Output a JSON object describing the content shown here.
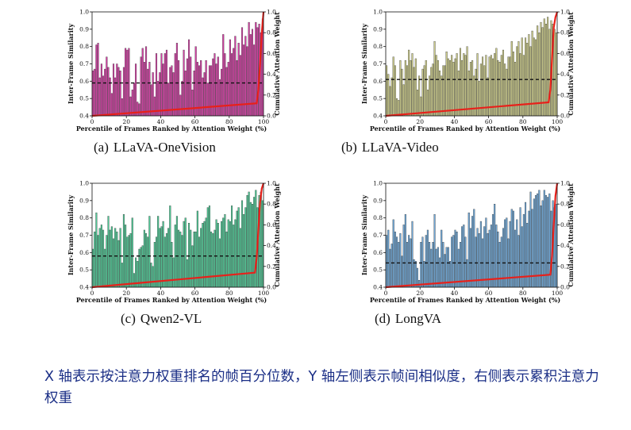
{
  "chart_data": [
    {
      "type": "bar",
      "caption_label": "(a)",
      "caption": "LLaVA-OneVision",
      "xlabel": "Percentile of Frames Ranked by Attention Weight (%)",
      "ylabel": "Inter-Frame Similarity",
      "y2label": "Cumulative Attention Weight",
      "xlim": [
        0,
        100
      ],
      "ylim": [
        0.4,
        1.0
      ],
      "y2lim": [
        0.0,
        1.0
      ],
      "xticks": [
        "0",
        "20",
        "40",
        "60",
        "80",
        "100"
      ],
      "yticks": [
        "0.4",
        "0.5",
        "0.6",
        "0.7",
        "0.8",
        "0.9",
        "1.0"
      ],
      "y2ticks": [
        "0.0",
        "0.2",
        "0.4",
        "0.6",
        "0.8",
        "1.0"
      ],
      "bar_color": "#d63fa6",
      "mean_similarity": 0.59,
      "values": [
        0.66,
        0.67,
        0.81,
        0.82,
        0.62,
        0.7,
        0.63,
        0.67,
        0.74,
        0.68,
        0.62,
        0.53,
        0.7,
        0.62,
        0.7,
        0.68,
        0.66,
        0.5,
        0.68,
        0.79,
        0.78,
        0.79,
        0.51,
        0.55,
        0.59,
        0.7,
        0.48,
        0.47,
        0.74,
        0.79,
        0.71,
        0.8,
        0.67,
        0.71,
        0.58,
        0.65,
        0.51,
        0.76,
        0.6,
        0.65,
        0.76,
        0.7,
        0.76,
        0.78,
        0.59,
        0.68,
        0.69,
        0.65,
        0.76,
        0.82,
        0.72,
        0.52,
        0.6,
        0.78,
        0.66,
        0.73,
        0.84,
        0.74,
        0.55,
        0.66,
        0.8,
        0.71,
        0.69,
        0.72,
        0.62,
        0.65,
        0.72,
        0.59,
        0.69,
        0.69,
        0.73,
        0.76,
        0.7,
        0.74,
        0.61,
        0.67,
        0.87,
        0.76,
        0.68,
        0.71,
        0.84,
        0.76,
        0.79,
        0.86,
        0.72,
        0.82,
        0.75,
        0.91,
        0.81,
        0.86,
        0.8,
        0.94,
        0.87,
        0.9,
        0.81,
        0.94,
        0.91,
        0.93,
        0.88,
        0.96
      ],
      "cumulative": [
        [
          0,
          0.0
        ],
        [
          96,
          0.12
        ],
        [
          97,
          0.25
        ],
        [
          98,
          0.5
        ],
        [
          99,
          0.8
        ],
        [
          100,
          1.0
        ]
      ]
    },
    {
      "type": "bar",
      "caption_label": "(b)",
      "caption": "LLaVA-Video",
      "xlabel": "Percentile of Frames Ranked by Attention Weight (%)",
      "ylabel": "Inter-Frame Similarity",
      "y2label": "Cumulative Attention Weight",
      "xlim": [
        0,
        100
      ],
      "ylim": [
        0.4,
        1.0
      ],
      "y2lim": [
        0.0,
        1.0
      ],
      "xticks": [
        "0",
        "20",
        "40",
        "60",
        "80",
        "100"
      ],
      "yticks": [
        "0.4",
        "0.5",
        "0.6",
        "0.7",
        "0.8",
        "0.9",
        "1.0"
      ],
      "y2ticks": [
        "0.0",
        "0.2",
        "0.4",
        "0.6",
        "0.8",
        "1.0"
      ],
      "bar_color": "#cccc8a",
      "mean_similarity": 0.61,
      "values": [
        0.69,
        0.64,
        0.57,
        0.62,
        0.74,
        0.69,
        0.5,
        0.49,
        0.72,
        0.67,
        0.58,
        0.72,
        0.69,
        0.78,
        0.72,
        0.76,
        0.68,
        0.73,
        0.55,
        0.63,
        0.51,
        0.67,
        0.69,
        0.72,
        0.55,
        0.63,
        0.68,
        0.7,
        0.83,
        0.75,
        0.72,
        0.66,
        0.63,
        0.69,
        0.69,
        0.77,
        0.73,
        0.72,
        0.75,
        0.71,
        0.73,
        0.76,
        0.66,
        0.79,
        0.72,
        0.76,
        0.75,
        0.8,
        0.66,
        0.71,
        0.72,
        0.63,
        0.67,
        0.76,
        0.6,
        0.7,
        0.74,
        0.69,
        0.75,
        0.62,
        0.74,
        0.75,
        0.73,
        0.76,
        0.79,
        0.72,
        0.71,
        0.75,
        0.78,
        0.7,
        0.67,
        0.74,
        0.74,
        0.83,
        0.77,
        0.71,
        0.8,
        0.83,
        0.76,
        0.85,
        0.75,
        0.85,
        0.82,
        0.87,
        0.8,
        0.89,
        0.85,
        0.84,
        0.92,
        0.88,
        0.94,
        0.91,
        0.96,
        0.93,
        0.97,
        0.9,
        0.95,
        0.93,
        0.9,
        0.88
      ],
      "cumulative": [
        [
          0,
          0.0
        ],
        [
          95,
          0.13
        ],
        [
          96,
          0.25
        ],
        [
          97,
          0.55
        ],
        [
          98,
          0.85
        ],
        [
          99,
          0.95
        ],
        [
          100,
          1.0
        ]
      ]
    },
    {
      "type": "bar",
      "caption_label": "(c)",
      "caption": "Qwen2-VL",
      "xlabel": "Percentile of Frames Ranked by Attention Weight (%)",
      "ylabel": "Inter-Frame Similarity",
      "y2label": "Cumulative Attention Weight",
      "xlim": [
        0,
        100
      ],
      "ylim": [
        0.4,
        1.0
      ],
      "y2lim": [
        0.0,
        1.0
      ],
      "xticks": [
        "0",
        "20",
        "40",
        "60",
        "80",
        "100"
      ],
      "yticks": [
        "0.4",
        "0.5",
        "0.6",
        "0.7",
        "0.8",
        "0.9",
        "1.0"
      ],
      "y2ticks": [
        "0.0",
        "0.2",
        "0.4",
        "0.6",
        "0.8",
        "1.0"
      ],
      "bar_color": "#4fcb97",
      "mean_similarity": 0.58,
      "values": [
        0.62,
        0.72,
        0.83,
        0.7,
        0.74,
        0.76,
        0.73,
        0.62,
        0.7,
        0.81,
        0.73,
        0.75,
        0.68,
        0.74,
        0.72,
        0.67,
        0.74,
        0.54,
        0.82,
        0.76,
        0.69,
        0.7,
        0.71,
        0.8,
        0.48,
        0.57,
        0.55,
        0.62,
        0.63,
        0.64,
        0.73,
        0.71,
        0.69,
        0.81,
        0.54,
        0.52,
        0.66,
        0.69,
        0.81,
        0.74,
        0.75,
        0.78,
        0.69,
        0.71,
        0.74,
        0.87,
        0.66,
        0.57,
        0.76,
        0.81,
        0.73,
        0.72,
        0.7,
        0.78,
        0.8,
        0.56,
        0.77,
        0.73,
        0.64,
        0.72,
        0.72,
        0.84,
        0.69,
        0.74,
        0.77,
        0.78,
        0.8,
        0.86,
        0.87,
        0.72,
        0.71,
        0.73,
        0.79,
        0.77,
        0.68,
        0.78,
        0.8,
        0.82,
        0.72,
        0.79,
        0.78,
        0.87,
        0.76,
        0.79,
        0.84,
        0.86,
        0.74,
        0.9,
        0.82,
        0.86,
        0.93,
        0.95,
        0.89,
        0.88,
        0.92,
        0.96,
        0.86,
        0.93,
        0.95,
        0.9
      ],
      "cumulative": [
        [
          0,
          0.0
        ],
        [
          95,
          0.14
        ],
        [
          96,
          0.28
        ],
        [
          97,
          0.55
        ],
        [
          98,
          0.82
        ],
        [
          99,
          0.95
        ],
        [
          100,
          1.0
        ]
      ]
    },
    {
      "type": "bar",
      "caption_label": "(d)",
      "caption": "LongVA",
      "xlabel": "Percentile of Frames Ranked by Attention Weight (%)",
      "ylabel": "Inter-Frame Similarity",
      "y2label": "Cumulative Attention Weight",
      "xlim": [
        0,
        100
      ],
      "ylim": [
        0.4,
        1.0
      ],
      "y2lim": [
        0.0,
        1.0
      ],
      "xticks": [
        "0",
        "20",
        "40",
        "60",
        "80",
        "100"
      ],
      "yticks": [
        "0.4",
        "0.5",
        "0.6",
        "0.7",
        "0.8",
        "0.9",
        "1.0"
      ],
      "y2ticks": [
        "0.0",
        "0.2",
        "0.4",
        "0.6",
        "0.8",
        "1.0"
      ],
      "bar_color": "#6fa8d8",
      "mean_similarity": 0.54,
      "values": [
        0.7,
        0.73,
        0.62,
        0.65,
        0.79,
        0.72,
        0.69,
        0.66,
        0.71,
        0.58,
        0.76,
        0.82,
        0.66,
        0.7,
        0.68,
        0.78,
        0.56,
        0.55,
        0.51,
        0.44,
        0.66,
        0.69,
        0.55,
        0.7,
        0.73,
        0.66,
        0.62,
        0.66,
        0.82,
        0.62,
        0.63,
        0.57,
        0.73,
        0.66,
        0.59,
        0.63,
        0.63,
        0.55,
        0.69,
        0.7,
        0.73,
        0.72,
        0.62,
        0.66,
        0.75,
        0.76,
        0.69,
        0.56,
        0.83,
        0.74,
        0.81,
        0.85,
        0.69,
        0.74,
        0.71,
        0.78,
        0.68,
        0.75,
        0.8,
        0.71,
        0.73,
        0.76,
        0.82,
        0.88,
        0.76,
        0.72,
        0.66,
        0.69,
        0.74,
        0.79,
        0.8,
        0.68,
        0.78,
        0.85,
        0.84,
        0.73,
        0.79,
        0.7,
        0.86,
        0.75,
        0.82,
        0.89,
        0.77,
        0.84,
        0.95,
        0.85,
        0.91,
        0.93,
        0.94,
        0.96,
        0.87,
        0.9,
        0.96,
        0.93,
        0.92,
        0.94,
        0.84,
        0.9,
        0.86,
        0.88
      ],
      "cumulative": [
        [
          0,
          0.0
        ],
        [
          96,
          0.12
        ],
        [
          97,
          0.3
        ],
        [
          98,
          0.6
        ],
        [
          99,
          0.88
        ],
        [
          100,
          1.0
        ]
      ]
    }
  ],
  "note": "X 轴表示按注意力权重排名的帧百分位数，Y 轴左侧表示帧间相似度，右侧表示累积注意力权重"
}
